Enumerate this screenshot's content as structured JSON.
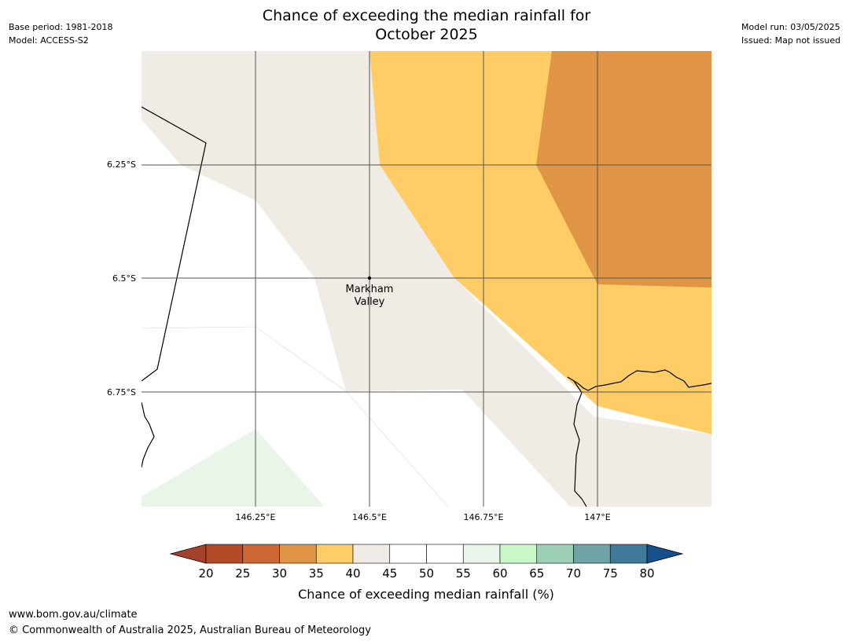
{
  "header": {
    "title_line1": "Chance of exceeding the median rainfall for",
    "title_line2": "October 2025",
    "base_period": "Base period: 1981-2018",
    "model": "Model: ACCESS-S2",
    "model_run": "Model run: 03/05/2025",
    "issued": "Issued: Map not issued"
  },
  "map": {
    "place_label_line1": "Markham",
    "place_label_line2": "Valley",
    "lat_labels": [
      "6.25°S",
      "6.5°S",
      "6.75°S"
    ],
    "lon_labels": [
      "146.25°E",
      "146.5°E",
      "146.75°E",
      "147°E"
    ],
    "colors": {
      "c35_40": "#ffcc66",
      "c30_35": "#e09445",
      "c40_45": "#f0ebe5",
      "c50_55": "#ffffff",
      "c55_60": "#e8f5e8",
      "gridline": "#555555",
      "coastline": "#000000"
    }
  },
  "legend": {
    "ticks": [
      "20",
      "25",
      "30",
      "35",
      "40",
      "45",
      "50",
      "55",
      "60",
      "65",
      "70",
      "75",
      "80"
    ],
    "colors": [
      "#a5402a",
      "#b34a27",
      "#cc6633",
      "#e09445",
      "#ffcc66",
      "#f0ebe5",
      "#ffffff",
      "#ffffff",
      "#e8f5e8",
      "#c8f7c8",
      "#9ccfb6",
      "#6fa3a6",
      "#3f7a99",
      "#16508a"
    ],
    "label": "Chance of exceeding median rainfall (%)"
  },
  "footer": {
    "url": "www.bom.gov.au/climate",
    "copyright": "© Commonwealth of Australia 2025, Australian Bureau of Meteorology"
  }
}
